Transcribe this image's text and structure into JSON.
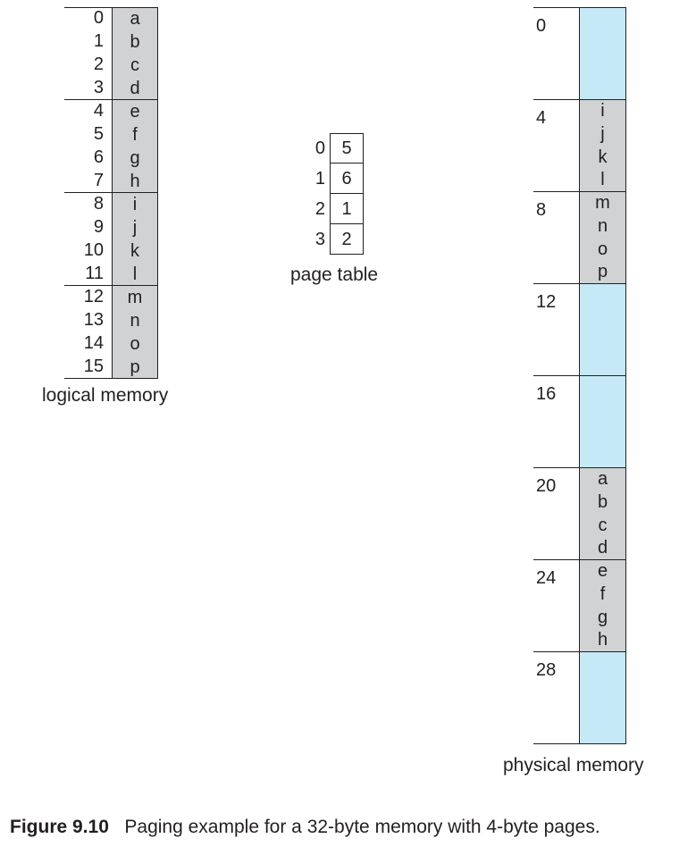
{
  "logical_memory": {
    "label": "logical memory",
    "entries": [
      {
        "addr": "0",
        "char": "a"
      },
      {
        "addr": "1",
        "char": "b"
      },
      {
        "addr": "2",
        "char": "c"
      },
      {
        "addr": "3",
        "char": "d"
      },
      {
        "addr": "4",
        "char": "e"
      },
      {
        "addr": "5",
        "char": "f"
      },
      {
        "addr": "6",
        "char": "g"
      },
      {
        "addr": "7",
        "char": "h"
      },
      {
        "addr": "8",
        "char": "i"
      },
      {
        "addr": "9",
        "char": "j"
      },
      {
        "addr": "10",
        "char": "k"
      },
      {
        "addr": "11",
        "char": "l"
      },
      {
        "addr": "12",
        "char": "m"
      },
      {
        "addr": "13",
        "char": "n"
      },
      {
        "addr": "14",
        "char": "o"
      },
      {
        "addr": "15",
        "char": "p"
      }
    ]
  },
  "page_table": {
    "label": "page table",
    "rows": [
      {
        "page": "0",
        "frame": "5"
      },
      {
        "page": "1",
        "frame": "6"
      },
      {
        "page": "2",
        "frame": "1"
      },
      {
        "page": "3",
        "frame": "2"
      }
    ]
  },
  "physical_memory": {
    "label": "physical memory",
    "frames": [
      {
        "addr": "0",
        "chars": []
      },
      {
        "addr": "4",
        "chars": [
          "i",
          "j",
          "k",
          "l"
        ]
      },
      {
        "addr": "8",
        "chars": [
          "m",
          "n",
          "o",
          "p"
        ]
      },
      {
        "addr": "12",
        "chars": []
      },
      {
        "addr": "16",
        "chars": []
      },
      {
        "addr": "20",
        "chars": [
          "a",
          "b",
          "c",
          "d"
        ]
      },
      {
        "addr": "24",
        "chars": [
          "e",
          "f",
          "g",
          "h"
        ]
      },
      {
        "addr": "28",
        "chars": []
      }
    ],
    "colors": {
      "free": "#c6e9f8",
      "used": "#d1d2d3"
    }
  },
  "caption": {
    "number": "Figure 9.10",
    "text": "Paging example for a 32-byte memory with 4-byte pages."
  }
}
